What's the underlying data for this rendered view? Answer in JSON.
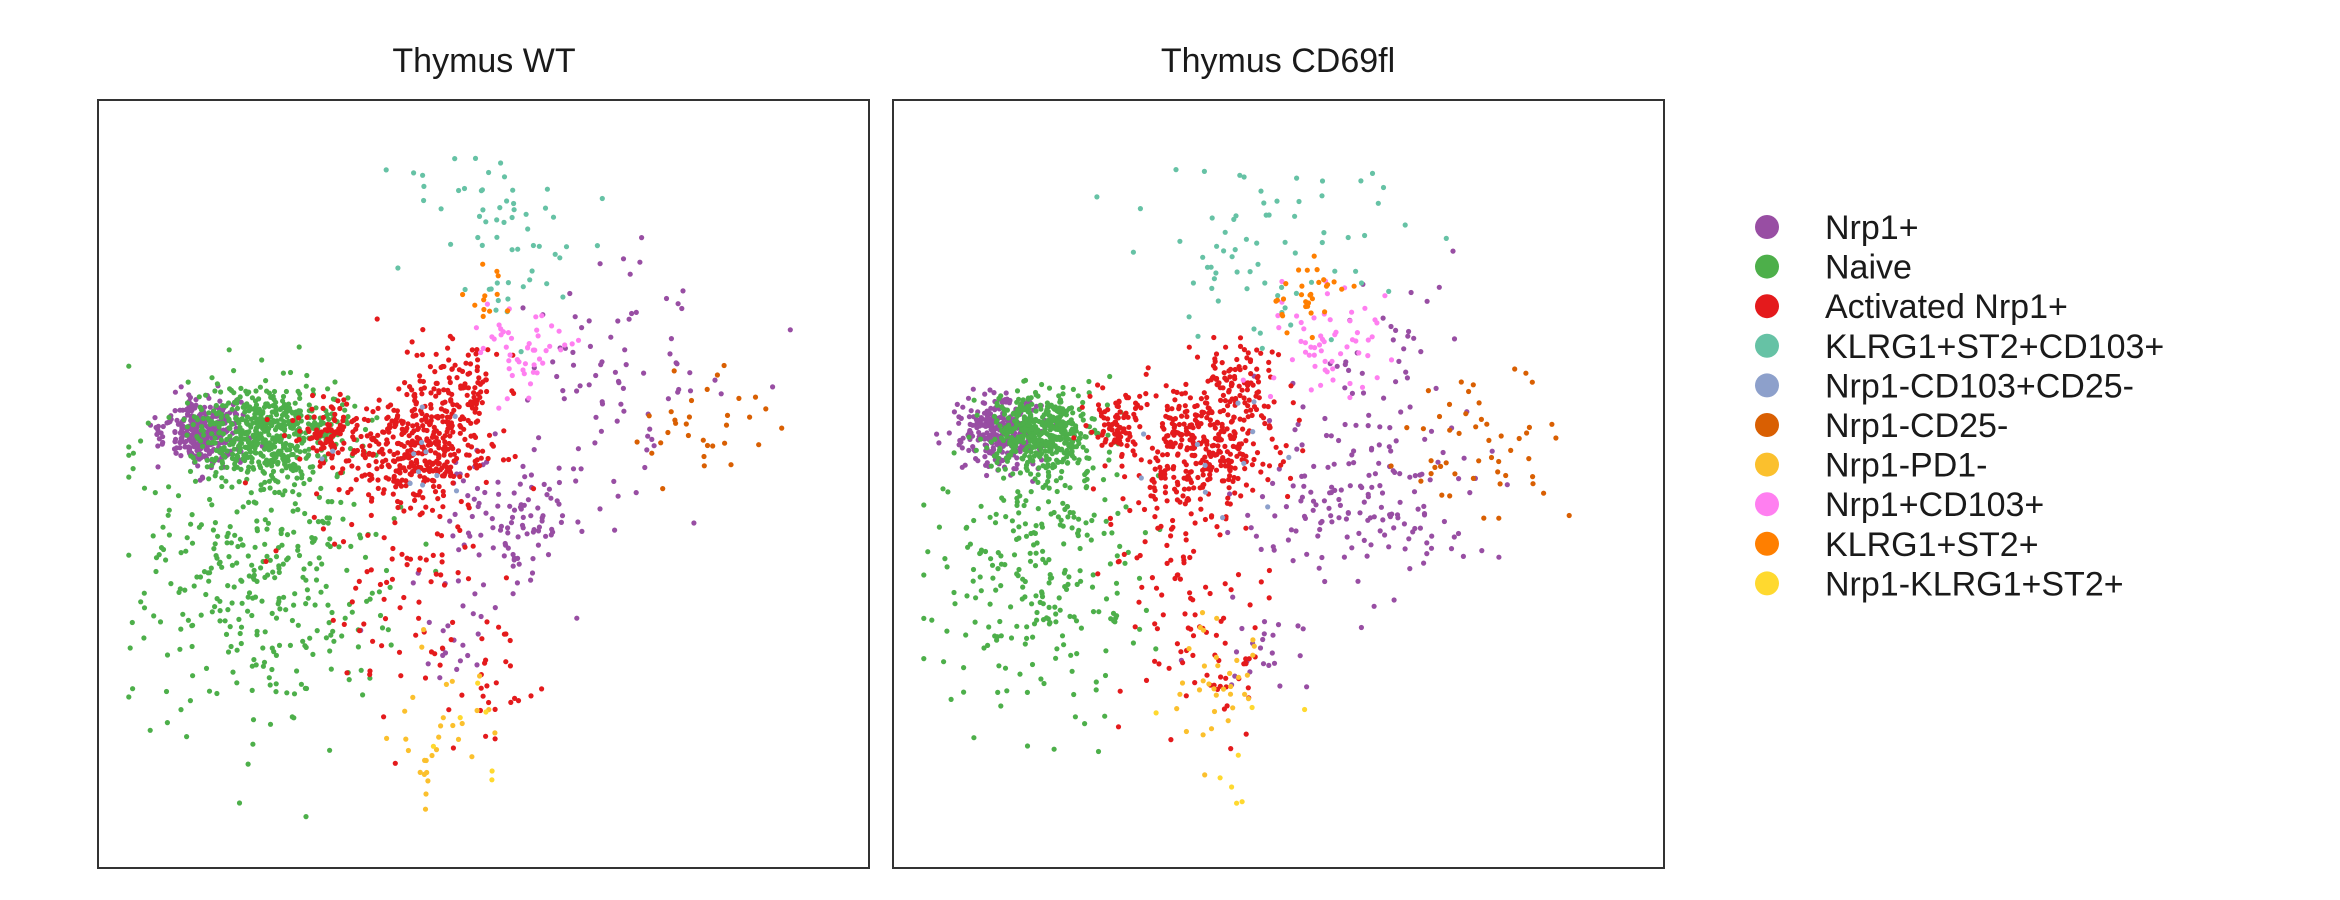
{
  "chart_data": {
    "type": "scatter",
    "panels": [
      {
        "title": "Thymus WT"
      },
      {
        "title": "Thymus CD69fl"
      }
    ],
    "axes": {
      "xlabel": "",
      "ylabel": "",
      "ticks": "none",
      "grid": false,
      "xlim": [
        0,
        100
      ],
      "ylim": [
        0,
        100
      ]
    },
    "legend": {
      "placement": "right"
    },
    "clusters": [
      {
        "name": "Nrp1+",
        "color": "#984EA3"
      },
      {
        "name": "Naive",
        "color": "#4DAF4A"
      },
      {
        "name": "Activated Nrp1+",
        "color": "#E41A1C"
      },
      {
        "name": "KLRG1+ST2+CD103+",
        "color": "#66C2A5"
      },
      {
        "name": "Nrp1-CD103+CD25-",
        "color": "#8DA0CB"
      },
      {
        "name": "Nrp1-CD25-",
        "color": "#D95F02"
      },
      {
        "name": "Nrp1-PD1-",
        "color": "#FBC02D"
      },
      {
        "name": "Nrp1+CD103+",
        "color": "#FF7FF0"
      },
      {
        "name": "KLRG1+ST2+",
        "color": "#FF7F00"
      },
      {
        "name": "Nrp1-KLRG1+ST2+",
        "color": "#FFD92F"
      }
    ],
    "point_groups": [
      [
        {
          "cluster": 0,
          "cx": 12,
          "cy": 43,
          "sx": 2.5,
          "sy": 2.4,
          "n": 340
        },
        {
          "cluster": 0,
          "cx": 54,
          "cy": 55,
          "sx": 5,
          "sy": 4.5,
          "n": 100
        },
        {
          "cluster": 0,
          "cx": 68,
          "cy": 38,
          "sx": 8,
          "sy": 10,
          "n": 90
        },
        {
          "cluster": 0,
          "cx": 45,
          "cy": 70,
          "sx": 4,
          "sy": 4,
          "n": 20
        },
        {
          "cluster": 1,
          "cx": 21,
          "cy": 43,
          "sx": 5,
          "sy": 3,
          "n": 560
        },
        {
          "cluster": 1,
          "cx": 20,
          "cy": 62,
          "sx": 9,
          "sy": 10,
          "n": 360
        },
        {
          "cluster": 2,
          "cx": 29,
          "cy": 43,
          "sx": 2,
          "sy": 2,
          "n": 90
        },
        {
          "cluster": 2,
          "cx": 41,
          "cy": 45,
          "sx": 5,
          "sy": 4,
          "n": 360
        },
        {
          "cluster": 2,
          "cx": 46,
          "cy": 36,
          "sx": 3,
          "sy": 3,
          "n": 100
        },
        {
          "cluster": 2,
          "cx": 39,
          "cy": 60,
          "sx": 7,
          "sy": 10,
          "n": 110
        },
        {
          "cluster": 2,
          "cx": 52,
          "cy": 77,
          "sx": 2.5,
          "sy": 4,
          "n": 25
        },
        {
          "cluster": 3,
          "cx": 52,
          "cy": 15,
          "sx": 6,
          "sy": 6,
          "n": 60
        },
        {
          "cluster": 4,
          "cx": 43,
          "cy": 46,
          "sx": 6,
          "sy": 5,
          "n": 12
        },
        {
          "cluster": 5,
          "cx": 80,
          "cy": 42,
          "sx": 6,
          "sy": 4,
          "n": 32
        },
        {
          "cluster": 6,
          "cx": 45,
          "cy": 83,
          "sx": 3.5,
          "sy": 6,
          "n": 30
        },
        {
          "cluster": 7,
          "cx": 56,
          "cy": 32,
          "sx": 3,
          "sy": 3,
          "n": 50
        },
        {
          "cluster": 8,
          "cx": 51,
          "cy": 24,
          "sx": 1.5,
          "sy": 2,
          "n": 12
        },
        {
          "cluster": 9,
          "cx": 50,
          "cy": 88,
          "sx": 6,
          "sy": 5,
          "n": 6
        }
      ],
      [
        {
          "cluster": 0,
          "cx": 12,
          "cy": 43,
          "sx": 2.5,
          "sy": 2.4,
          "n": 300
        },
        {
          "cluster": 0,
          "cx": 60,
          "cy": 53,
          "sx": 8,
          "sy": 6,
          "n": 140
        },
        {
          "cluster": 0,
          "cx": 66,
          "cy": 40,
          "sx": 6,
          "sy": 10,
          "n": 60
        },
        {
          "cluster": 0,
          "cx": 48,
          "cy": 72,
          "sx": 4,
          "sy": 4,
          "n": 25
        },
        {
          "cluster": 1,
          "cx": 18,
          "cy": 43,
          "sx": 3,
          "sy": 2.5,
          "n": 420
        },
        {
          "cluster": 1,
          "cx": 18,
          "cy": 60,
          "sx": 7,
          "sy": 10,
          "n": 300
        },
        {
          "cluster": 2,
          "cx": 28,
          "cy": 42,
          "sx": 2,
          "sy": 2,
          "n": 80
        },
        {
          "cluster": 2,
          "cx": 40,
          "cy": 45,
          "sx": 5,
          "sy": 4,
          "n": 340
        },
        {
          "cluster": 2,
          "cx": 45,
          "cy": 36,
          "sx": 3,
          "sy": 3,
          "n": 80
        },
        {
          "cluster": 2,
          "cx": 36,
          "cy": 62,
          "sx": 5,
          "sy": 9,
          "n": 100
        },
        {
          "cluster": 2,
          "cx": 43,
          "cy": 76,
          "sx": 2.5,
          "sy": 4,
          "n": 25
        },
        {
          "cluster": 3,
          "cx": 48,
          "cy": 16,
          "sx": 8,
          "sy": 6,
          "n": 70
        },
        {
          "cluster": 4,
          "cx": 42,
          "cy": 46,
          "sx": 6,
          "sy": 5,
          "n": 12
        },
        {
          "cluster": 5,
          "cx": 77,
          "cy": 46,
          "sx": 6,
          "sy": 6,
          "n": 50
        },
        {
          "cluster": 6,
          "cx": 42,
          "cy": 77,
          "sx": 3,
          "sy": 4,
          "n": 35
        },
        {
          "cluster": 7,
          "cx": 56,
          "cy": 32,
          "sx": 4,
          "sy": 4,
          "n": 60
        },
        {
          "cluster": 8,
          "cx": 55,
          "cy": 24,
          "sx": 3,
          "sy": 2.5,
          "n": 30
        },
        {
          "cluster": 9,
          "cx": 45,
          "cy": 88,
          "sx": 5,
          "sy": 4,
          "n": 8
        }
      ]
    ]
  }
}
